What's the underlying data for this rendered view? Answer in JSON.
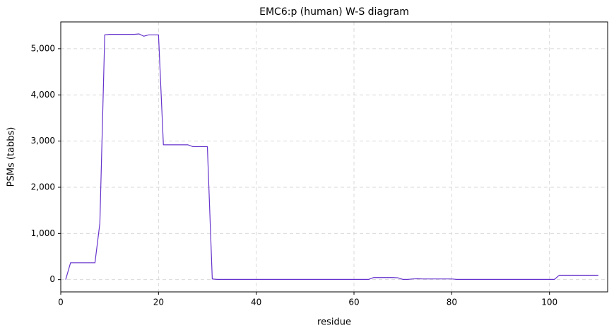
{
  "chart_data": {
    "type": "line",
    "title": "EMC6:p (human) W-S diagram",
    "x_label": "residue",
    "y_label": "PSMs (tabbs)",
    "x": [
      1,
      2,
      3,
      4,
      5,
      6,
      7,
      8,
      9,
      10,
      11,
      12,
      13,
      14,
      15,
      16,
      17,
      18,
      19,
      20,
      21,
      22,
      23,
      24,
      25,
      26,
      27,
      28,
      29,
      30,
      31,
      32,
      33,
      34,
      35,
      36,
      37,
      38,
      39,
      40,
      41,
      42,
      43,
      44,
      45,
      46,
      47,
      48,
      49,
      50,
      51,
      52,
      53,
      54,
      55,
      56,
      57,
      58,
      59,
      60,
      61,
      62,
      63,
      64,
      65,
      66,
      67,
      68,
      69,
      70,
      71,
      72,
      73,
      74,
      75,
      76,
      77,
      78,
      79,
      80,
      81,
      82,
      83,
      84,
      85,
      86,
      87,
      88,
      89,
      90,
      91,
      92,
      93,
      94,
      95,
      96,
      97,
      98,
      99,
      100,
      101,
      102,
      103,
      104,
      105,
      106,
      107,
      108,
      109,
      110
    ],
    "series": [
      {
        "name": "EMC6",
        "color": "#6633cc",
        "values": [
          0,
          365,
          365,
          365,
          365,
          365,
          365,
          1220,
          5300,
          5310,
          5310,
          5310,
          5310,
          5310,
          5310,
          5320,
          5270,
          5300,
          5300,
          5300,
          2920,
          2920,
          2920,
          2920,
          2920,
          2920,
          2880,
          2880,
          2880,
          2880,
          15,
          5,
          5,
          5,
          5,
          5,
          5,
          5,
          5,
          5,
          5,
          5,
          5,
          5,
          5,
          5,
          5,
          5,
          5,
          5,
          5,
          5,
          5,
          5,
          5,
          5,
          5,
          5,
          5,
          5,
          5,
          5,
          5,
          45,
          45,
          45,
          45,
          45,
          40,
          5,
          5,
          15,
          20,
          15,
          15,
          15,
          15,
          15,
          15,
          15,
          5,
          5,
          5,
          5,
          5,
          5,
          5,
          5,
          5,
          5,
          5,
          5,
          5,
          5,
          5,
          5,
          5,
          5,
          5,
          5,
          5,
          95,
          95,
          95,
          95,
          95,
          95,
          95,
          95,
          95
        ]
      }
    ],
    "xlim": [
      0,
      111.9
    ],
    "ylim": [
      -265,
      5580
    ],
    "xticks": [
      0,
      20,
      40,
      60,
      80,
      100
    ],
    "yticks": [
      0,
      {
        "value": 1000,
        "label": "1,000"
      },
      {
        "value": 2000,
        "label": "2,000"
      },
      {
        "value": 3000,
        "label": "3,000"
      },
      {
        "value": 4000,
        "label": "4,000"
      },
      {
        "value": 5000,
        "label": "5,000"
      }
    ],
    "grid": true
  }
}
